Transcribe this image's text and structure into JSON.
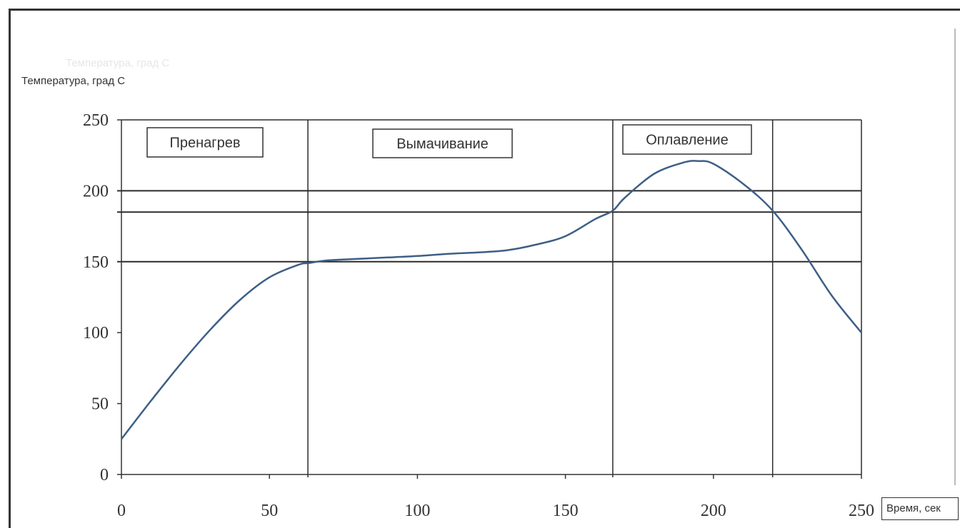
{
  "colors": {
    "curve": "#3d5f85",
    "grid": "#2b2b2b",
    "axis": "#333333",
    "background": "#ffffff"
  },
  "chart_data": {
    "type": "line",
    "title": "",
    "ylabel": "Температура, град С",
    "ylabel_ghost": "Температура, град С",
    "xlabel": "Время, сек",
    "xlim": [
      0,
      250
    ],
    "ylim": [
      0,
      250
    ],
    "xticks": [
      0,
      50,
      100,
      150,
      200,
      250
    ],
    "yticks": [
      0,
      50,
      100,
      150,
      200,
      250
    ],
    "hlines": [
      150,
      185,
      200
    ],
    "vlines": [
      63,
      166,
      220
    ],
    "phases": [
      "Пренагрев",
      "Вымачивание",
      "Оплавление"
    ],
    "series": [
      {
        "x": [
          0,
          10,
          20,
          30,
          40,
          50,
          60,
          63,
          70,
          80,
          90,
          100,
          110,
          120,
          130,
          140,
          150,
          160,
          166,
          170,
          180,
          190,
          195,
          200,
          210,
          220,
          230,
          240,
          250
        ],
        "y": [
          25,
          52,
          78,
          102,
          123,
          139,
          148,
          149,
          151,
          152,
          153,
          154,
          155.5,
          156.5,
          158,
          162,
          168,
          180,
          186,
          195,
          212,
          220,
          221,
          219,
          205,
          186,
          158,
          126,
          100
        ]
      }
    ]
  }
}
